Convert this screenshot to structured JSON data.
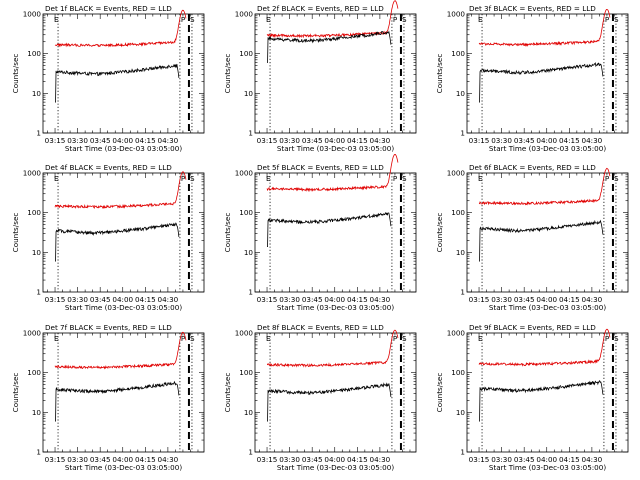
{
  "chart_data": {
    "type": "line",
    "y_scale": "log",
    "ylim": [
      1,
      1000
    ],
    "y_ticks": [
      1,
      10,
      100,
      1000
    ],
    "x_tick_labels": [
      "03:15",
      "03:30",
      "03:45",
      "04:00",
      "04:15",
      "04:30"
    ],
    "x_tick_minutes": [
      15,
      30,
      45,
      60,
      75,
      90
    ],
    "x_range_minutes": [
      7,
      114
    ],
    "xlabel": "Start Time (03-Dec-03 03:05:00)",
    "ylabel": "Counts/sec",
    "markers": {
      "E": 17,
      "P": 98,
      "S": 104
    },
    "dotted_lines_minutes": [
      17,
      98,
      106
    ],
    "dashed_line_minutes": 104,
    "series_names": [
      "Events",
      "LLD"
    ],
    "series_colors": {
      "Events": "#000000",
      "LLD": "#e00000"
    },
    "panels": [
      {
        "title": "Det 1f BLACK = Events, RED = LLD",
        "events_level": 35,
        "lld_level": 190,
        "events_start": 6
      },
      {
        "title": "Det 2f BLACK = Events, RED = LLD",
        "events_level": 240,
        "lld_level": 330,
        "events_start": 60
      },
      {
        "title": "Det 3f BLACK = Events, RED = LLD",
        "events_level": 38,
        "lld_level": 200,
        "events_start": 6
      },
      {
        "title": "Det 4f BLACK = Events, RED = LLD",
        "events_level": 35,
        "lld_level": 165,
        "events_start": 6
      },
      {
        "title": "Det 5f BLACK = Events, RED = LLD",
        "events_level": 65,
        "lld_level": 450,
        "events_start": 14
      },
      {
        "title": "Det 6f BLACK = Events, RED = LLD",
        "events_level": 40,
        "lld_level": 200,
        "events_start": 6
      },
      {
        "title": "Det 7f BLACK = Events, RED = LLD",
        "events_level": 38,
        "lld_level": 160,
        "events_start": 6
      },
      {
        "title": "Det 8f BLACK = Events, RED = LLD",
        "events_level": 35,
        "lld_level": 180,
        "events_start": 6
      },
      {
        "title": "Det 9f BLACK = Events, RED = LLD",
        "events_level": 40,
        "lld_level": 190,
        "events_start": 6
      }
    ]
  }
}
